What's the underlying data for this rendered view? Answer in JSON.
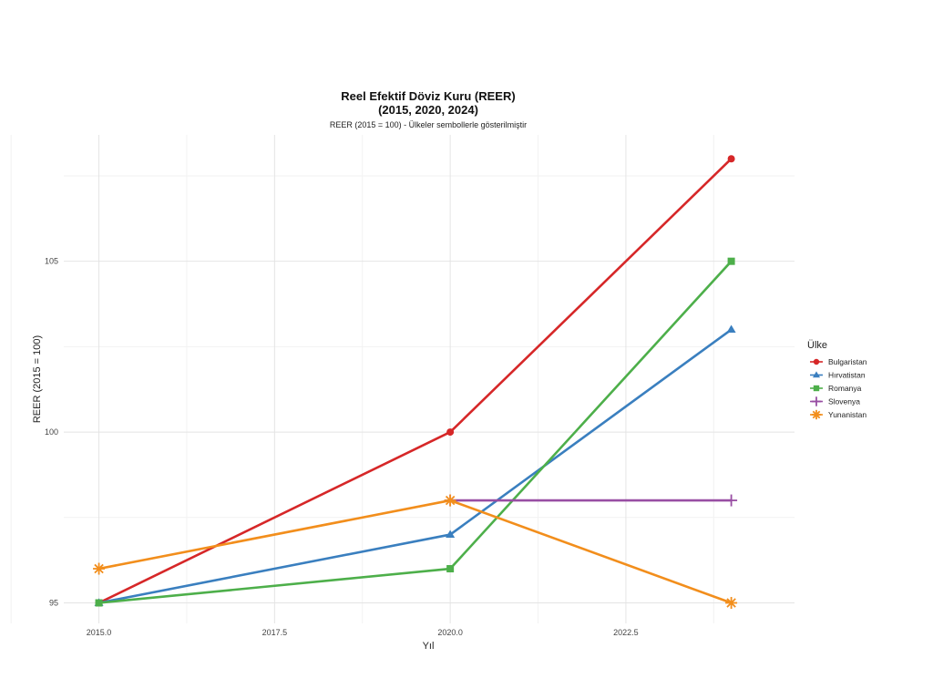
{
  "chart_data": {
    "type": "line",
    "title": "Reel Efektif Döviz Kuru (REER)",
    "title_line2": "(2015, 2020, 2024)",
    "subtitle": "REER (2015 = 100) - Ülkeler sembollerle gösterilmiştir",
    "xlabel": "Yıl",
    "ylabel": "REER (2015 = 100)",
    "xlim": [
      2014.5,
      2024.9
    ],
    "ylim": [
      94.4,
      108.7
    ],
    "x_ticks": [
      2015.0,
      2017.5,
      2020.0,
      2022.5
    ],
    "x_tick_labels": [
      "2015.0",
      "2017.5",
      "2020.0",
      "2022.5"
    ],
    "y_ticks": [
      95,
      100,
      105
    ],
    "y_tick_labels": [
      "95",
      "100",
      "105"
    ],
    "grid": true,
    "legend_title": "Ülke",
    "legend_position": "right",
    "series": [
      {
        "name": "Bulgaristan",
        "color": "#d62728",
        "marker": "circle",
        "x": [
          2015,
          2020,
          2024
        ],
        "y": [
          95,
          100,
          108
        ]
      },
      {
        "name": "Hırvatistan",
        "color": "#3a7fbf",
        "marker": "triangle",
        "x": [
          2015,
          2020,
          2024
        ],
        "y": [
          95,
          97,
          103
        ]
      },
      {
        "name": "Romanya",
        "color": "#4daf4a",
        "marker": "square",
        "x": [
          2015,
          2020,
          2024
        ],
        "y": [
          95,
          96,
          105
        ]
      },
      {
        "name": "Slovenya",
        "color": "#984ea3",
        "marker": "plus",
        "x": [
          2020,
          2024
        ],
        "y": [
          98,
          98
        ]
      },
      {
        "name": "Yunanistan",
        "color": "#f28e1c",
        "marker": "asterisk",
        "x": [
          2015,
          2020,
          2024
        ],
        "y": [
          96,
          98,
          95
        ]
      }
    ]
  }
}
